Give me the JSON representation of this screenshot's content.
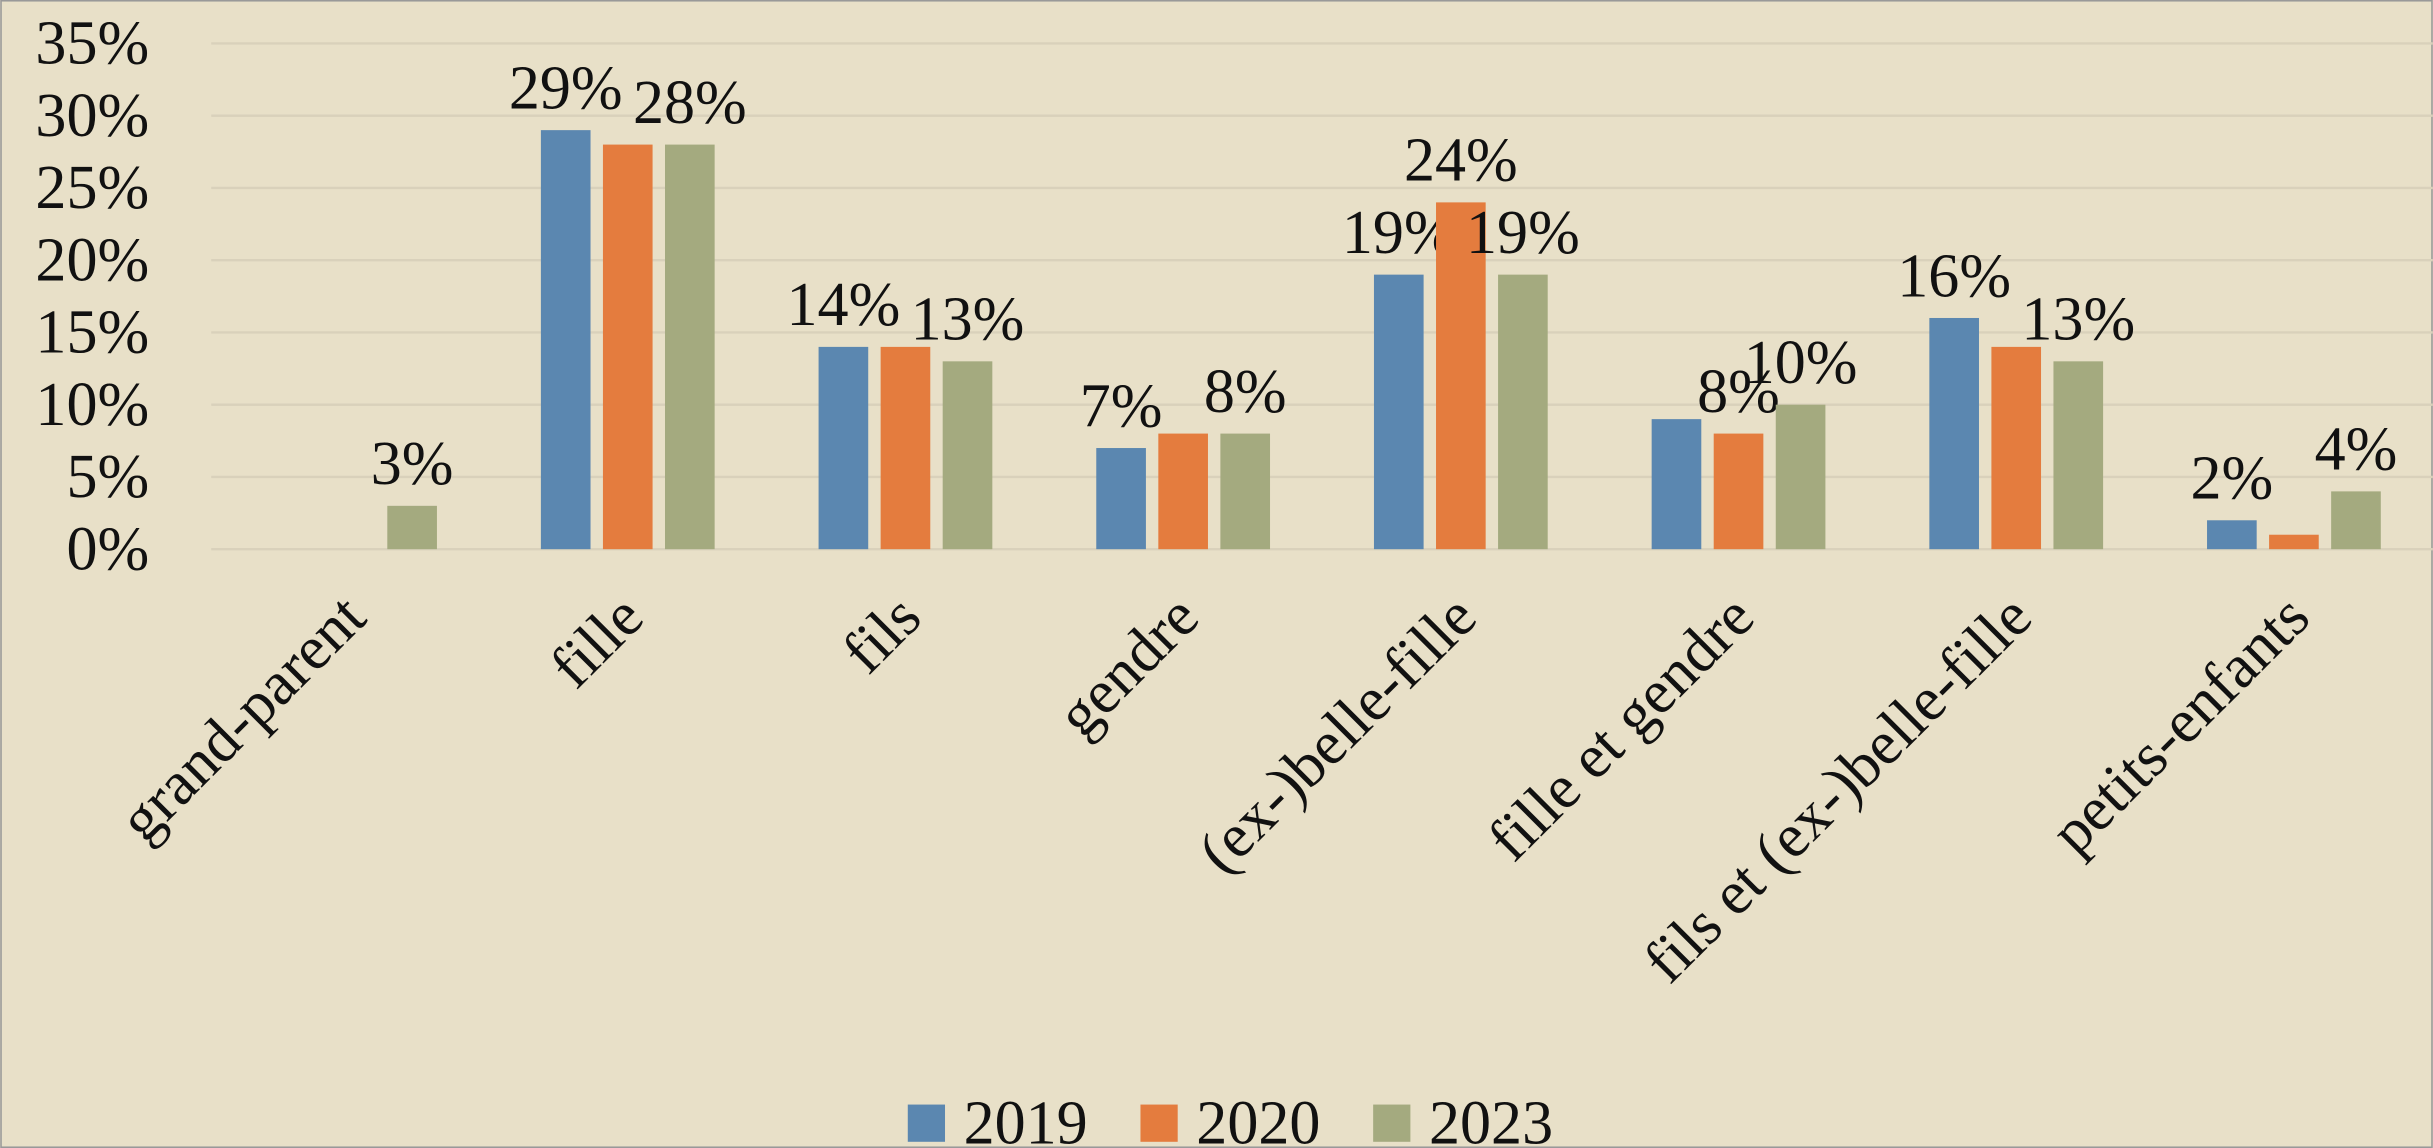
{
  "chart_data": {
    "type": "bar",
    "categories": [
      "grand-parent",
      "fille",
      "fils",
      "gendre",
      "(ex-)belle-fille",
      "fille et gendre",
      "fils et (ex-)belle-fille",
      "petits-enfants"
    ],
    "series": [
      {
        "name": "2019",
        "color": "#5b87b0",
        "values": [
          null,
          29,
          14,
          7,
          19,
          9,
          16,
          2
        ],
        "value_labels": [
          null,
          "29%",
          "14%",
          "7%",
          "19%",
          null,
          "16%",
          "2%"
        ]
      },
      {
        "name": "2020",
        "color": "#e47c3e",
        "values": [
          null,
          28,
          14,
          8,
          24,
          8,
          14,
          1
        ],
        "value_labels": [
          null,
          null,
          null,
          null,
          "24%",
          "8%",
          null,
          null
        ]
      },
      {
        "name": "2023",
        "color": "#a4aa7f",
        "values": [
          3,
          28,
          13,
          8,
          19,
          10,
          13,
          4
        ],
        "value_labels": [
          "3%",
          "28%",
          "13%",
          "8%",
          "19%",
          "10%",
          "13%",
          "4%"
        ]
      }
    ],
    "ylim": [
      0,
      35
    ],
    "yticks": [
      {
        "value": 0,
        "label": "0%"
      },
      {
        "value": 5,
        "label": "5%"
      },
      {
        "value": 10,
        "label": "10%"
      },
      {
        "value": 15,
        "label": "15%"
      },
      {
        "value": 20,
        "label": "20%"
      },
      {
        "value": 25,
        "label": "25%"
      },
      {
        "value": 30,
        "label": "30%"
      },
      {
        "value": 35,
        "label": "35%"
      }
    ],
    "grid": true,
    "legend": "bottom"
  }
}
